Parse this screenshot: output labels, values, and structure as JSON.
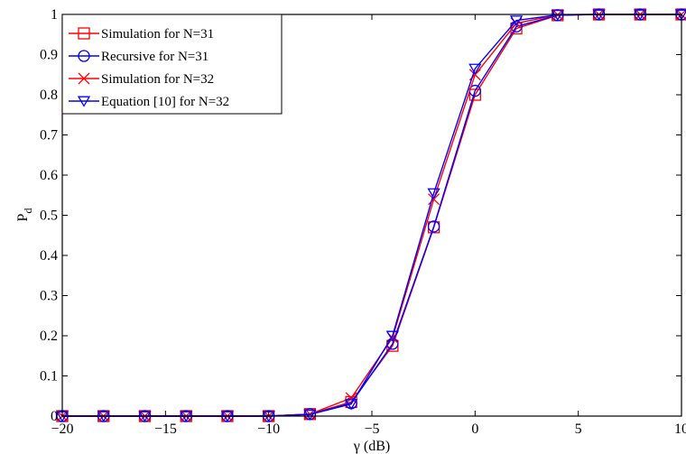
{
  "chart_data": {
    "type": "line",
    "title": "",
    "xlabel": "γ (dB)",
    "ylabel": "P",
    "ylabel_subscript": "d",
    "xlim": [
      -20,
      10
    ],
    "ylim": [
      0,
      1
    ],
    "x_ticks": [
      -20,
      -15,
      -10,
      -5,
      0,
      5,
      10
    ],
    "x_tick_labels": [
      "−20",
      "−15",
      "−10",
      "−5",
      "0",
      "5",
      "10"
    ],
    "y_ticks": [
      0,
      0.1,
      0.2,
      0.3,
      0.4,
      0.5,
      0.6,
      0.7,
      0.8,
      0.9,
      1
    ],
    "y_tick_labels": [
      "0",
      "0.1",
      "0.2",
      "0.3",
      "0.4",
      "0.5",
      "0.6",
      "0.7",
      "0.8",
      "0.9",
      "1"
    ],
    "grid": false,
    "legend_position": "top-left",
    "x": [
      -20,
      -18,
      -16,
      -14,
      -12,
      -10,
      -8,
      -6,
      -4,
      -2,
      0,
      2,
      4,
      6,
      8,
      10
    ],
    "series": [
      {
        "name": "Simulation for N=31",
        "color": "#ff0000",
        "marker": "square",
        "values": [
          0,
          0,
          0,
          0,
          0,
          0,
          0.005,
          0.035,
          0.175,
          0.47,
          0.8,
          0.965,
          0.998,
          1,
          1,
          1
        ]
      },
      {
        "name": "Recursive for N=31",
        "color": "#0000ff",
        "marker": "circle",
        "values": [
          0,
          0,
          0,
          0,
          0,
          0,
          0.005,
          0.032,
          0.18,
          0.472,
          0.81,
          0.97,
          0.998,
          1,
          1,
          1
        ]
      },
      {
        "name": "Simulation for N=32",
        "color": "#ff0000",
        "marker": "x",
        "values": [
          0,
          0,
          0,
          0,
          0,
          0,
          0.005,
          0.045,
          0.195,
          0.54,
          0.85,
          0.978,
          0.999,
          1,
          1,
          1
        ]
      },
      {
        "name": "Equation [10] for N=32",
        "color": "#0000ff",
        "marker": "triangle-down",
        "values": [
          0,
          0,
          0,
          0,
          0,
          0,
          0.004,
          0.03,
          0.2,
          0.555,
          0.865,
          0.985,
          0.999,
          1,
          1,
          1
        ]
      }
    ]
  }
}
